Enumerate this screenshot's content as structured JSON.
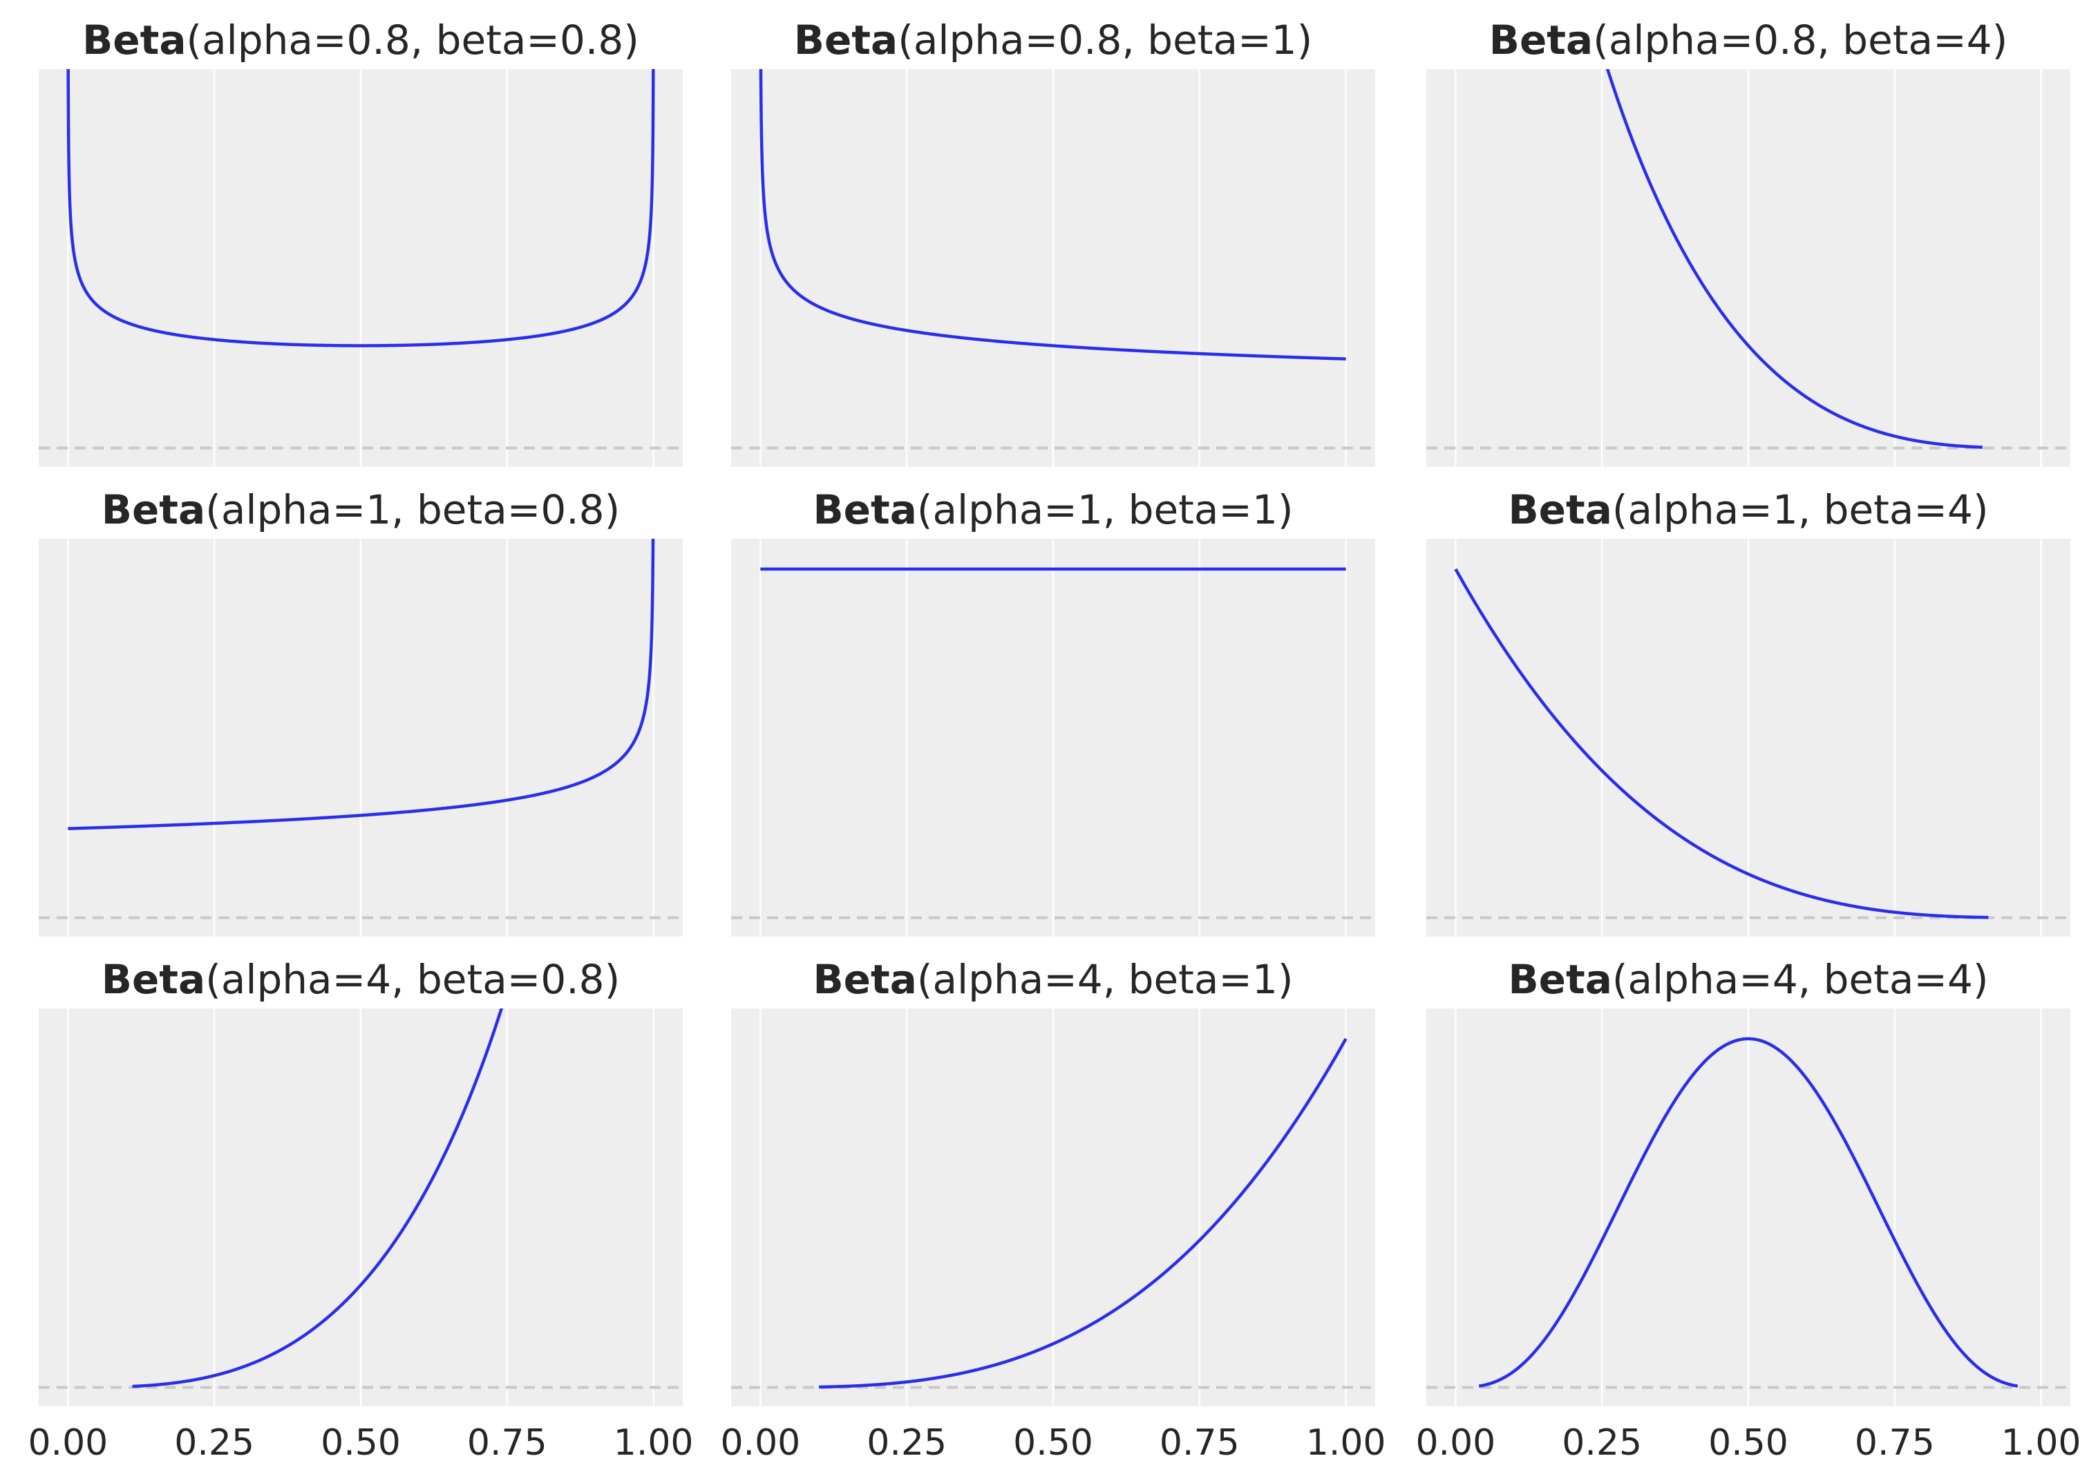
{
  "figure": {
    "background": "#ffffff",
    "panel_background": "#eeeeee",
    "grid_color": "#ffffff",
    "line_color": "#2a2eec",
    "baseline_color": "#c8c8c8"
  },
  "chart_data": [
    {
      "type": "line",
      "title_bold": "Beta",
      "title_params": "(alpha=0.8, beta=0.8)",
      "alpha": 0.8,
      "beta": 0.8,
      "x_range": [
        0.0,
        1.0
      ],
      "xlim": [
        -0.05,
        1.05
      ],
      "ylim": [
        -0.05,
        1.0
      ],
      "xticks": [
        0.0,
        0.25,
        0.5,
        0.75,
        1.0
      ],
      "xtick_labels": [],
      "grid": true,
      "show_yticks": false
    },
    {
      "type": "line",
      "title_bold": "Beta",
      "title_params": "(alpha=0.8, beta=1)",
      "alpha": 0.8,
      "beta": 1,
      "x_range": [
        0.0,
        1.0
      ],
      "xlim": [
        -0.05,
        1.05
      ],
      "ylim": [
        -0.05,
        1.0
      ],
      "xticks": [
        0.0,
        0.25,
        0.5,
        0.75,
        1.0
      ],
      "xtick_labels": [],
      "grid": true,
      "show_yticks": false
    },
    {
      "type": "line",
      "title_bold": "Beta",
      "title_params": "(alpha=0.8, beta=4)",
      "alpha": 0.8,
      "beta": 4,
      "x_range": [
        0.0,
        0.9
      ],
      "xlim": [
        -0.05,
        1.05
      ],
      "ylim": [
        -0.05,
        1.0
      ],
      "xticks": [
        0.0,
        0.25,
        0.5,
        0.75,
        1.0
      ],
      "xtick_labels": [],
      "grid": true,
      "show_yticks": false
    },
    {
      "type": "line",
      "title_bold": "Beta",
      "title_params": "(alpha=1, beta=0.8)",
      "alpha": 1,
      "beta": 0.8,
      "x_range": [
        0.0,
        1.0
      ],
      "xlim": [
        -0.05,
        1.05
      ],
      "ylim": [
        -0.05,
        1.0
      ],
      "xticks": [
        0.0,
        0.25,
        0.5,
        0.75,
        1.0
      ],
      "xtick_labels": [],
      "grid": true,
      "show_yticks": false
    },
    {
      "type": "line",
      "title_bold": "Beta",
      "title_params": "(alpha=1, beta=1)",
      "alpha": 1,
      "beta": 1,
      "x_range": [
        0.0,
        1.0
      ],
      "xlim": [
        -0.05,
        1.05
      ],
      "ylim": [
        -0.05,
        1.0
      ],
      "xticks": [
        0.0,
        0.25,
        0.5,
        0.75,
        1.0
      ],
      "xtick_labels": [],
      "grid": true,
      "show_yticks": false
    },
    {
      "type": "line",
      "title_bold": "Beta",
      "title_params": "(alpha=1, beta=4)",
      "alpha": 1,
      "beta": 4,
      "x_range": [
        0.0,
        0.91
      ],
      "xlim": [
        -0.05,
        1.05
      ],
      "ylim": [
        -0.05,
        1.0
      ],
      "xticks": [
        0.0,
        0.25,
        0.5,
        0.75,
        1.0
      ],
      "xtick_labels": [],
      "grid": true,
      "show_yticks": false
    },
    {
      "type": "line",
      "title_bold": "Beta",
      "title_params": "(alpha=4, beta=0.8)",
      "alpha": 4,
      "beta": 0.8,
      "x_range": [
        0.11,
        0.98
      ],
      "xlim": [
        -0.05,
        1.05
      ],
      "ylim": [
        -0.05,
        1.0
      ],
      "xticks": [
        0.0,
        0.25,
        0.5,
        0.75,
        1.0
      ],
      "xtick_labels": [
        "0.00",
        "0.25",
        "0.50",
        "0.75",
        "1.00"
      ],
      "grid": true,
      "show_yticks": false
    },
    {
      "type": "line",
      "title_bold": "Beta",
      "title_params": "(alpha=4, beta=1)",
      "alpha": 4,
      "beta": 1,
      "x_range": [
        0.1,
        1.0
      ],
      "xlim": [
        -0.05,
        1.05
      ],
      "ylim": [
        -0.05,
        1.0
      ],
      "xticks": [
        0.0,
        0.25,
        0.5,
        0.75,
        1.0
      ],
      "xtick_labels": [
        "0.00",
        "0.25",
        "0.50",
        "0.75",
        "1.00"
      ],
      "grid": true,
      "show_yticks": false
    },
    {
      "type": "line",
      "title_bold": "Beta",
      "title_params": "(alpha=4, beta=4)",
      "alpha": 4,
      "beta": 4,
      "x_range": [
        0.04,
        0.96
      ],
      "xlim": [
        -0.05,
        1.05
      ],
      "ylim": [
        -0.05,
        1.0
      ],
      "xticks": [
        0.0,
        0.25,
        0.5,
        0.75,
        1.0
      ],
      "xtick_labels": [
        "0.00",
        "0.25",
        "0.50",
        "0.75",
        "1.00"
      ],
      "grid": true,
      "show_yticks": false
    }
  ]
}
